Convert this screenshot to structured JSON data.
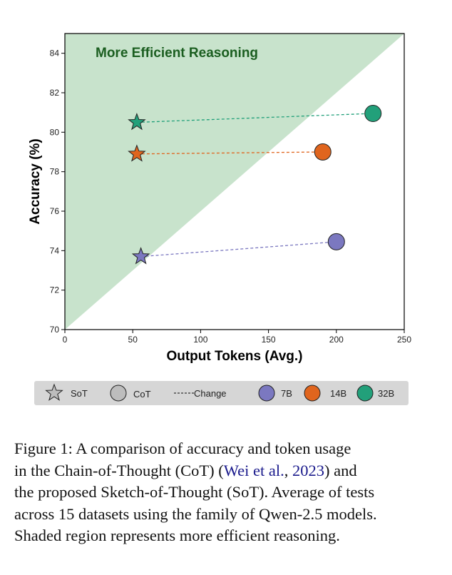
{
  "chart_data": {
    "type": "scatter",
    "xlabel": "Output Tokens (Avg.)",
    "ylabel": "Accuracy (%)",
    "xlim": [
      0,
      250
    ],
    "ylim": [
      70,
      85
    ],
    "xticks": [
      0,
      50,
      100,
      150,
      200,
      250
    ],
    "yticks": [
      70,
      72,
      74,
      76,
      78,
      80,
      82,
      84
    ],
    "region_label": "More Efficient Reasoning",
    "region": {
      "description_points": [
        [
          0,
          70
        ],
        [
          250,
          85
        ],
        [
          0,
          85
        ]
      ],
      "color": "#c8e3cc"
    },
    "series": [
      {
        "name": "7B",
        "color": "#7b78c0",
        "sot": {
          "x": 56,
          "y": 73.7
        },
        "cot": {
          "x": 200,
          "y": 74.45
        }
      },
      {
        "name": "14B",
        "color": "#e0651e",
        "sot": {
          "x": 53,
          "y": 78.9
        },
        "cot": {
          "x": 190,
          "y": 79.0
        }
      },
      {
        "name": "32B",
        "color": "#22a07a",
        "sot": {
          "x": 53,
          "y": 80.5
        },
        "cot": {
          "x": 227,
          "y": 80.95
        }
      }
    ],
    "legend": {
      "position": "bottom",
      "items": {
        "sot": "SoT",
        "cot": "CoT",
        "change": "Change",
        "s7": "7B",
        "s14": "14B",
        "s32": "32B"
      }
    }
  },
  "caption": {
    "line1": "Figure 1:  A comparison of accuracy and token usage",
    "line2_a": "in the Chain-of-Thought (CoT) (",
    "line2_cite_a": "Wei et al.",
    "line2_b": ", ",
    "line2_cite_b": "2023",
    "line2_c": ") and",
    "line3": "the proposed Sketch-of-Thought (SoT). Average of tests",
    "line4": "across 15 datasets using the family of Qwen-2.5 models.",
    "line5": "Shaded region represents more efficient reasoning."
  }
}
